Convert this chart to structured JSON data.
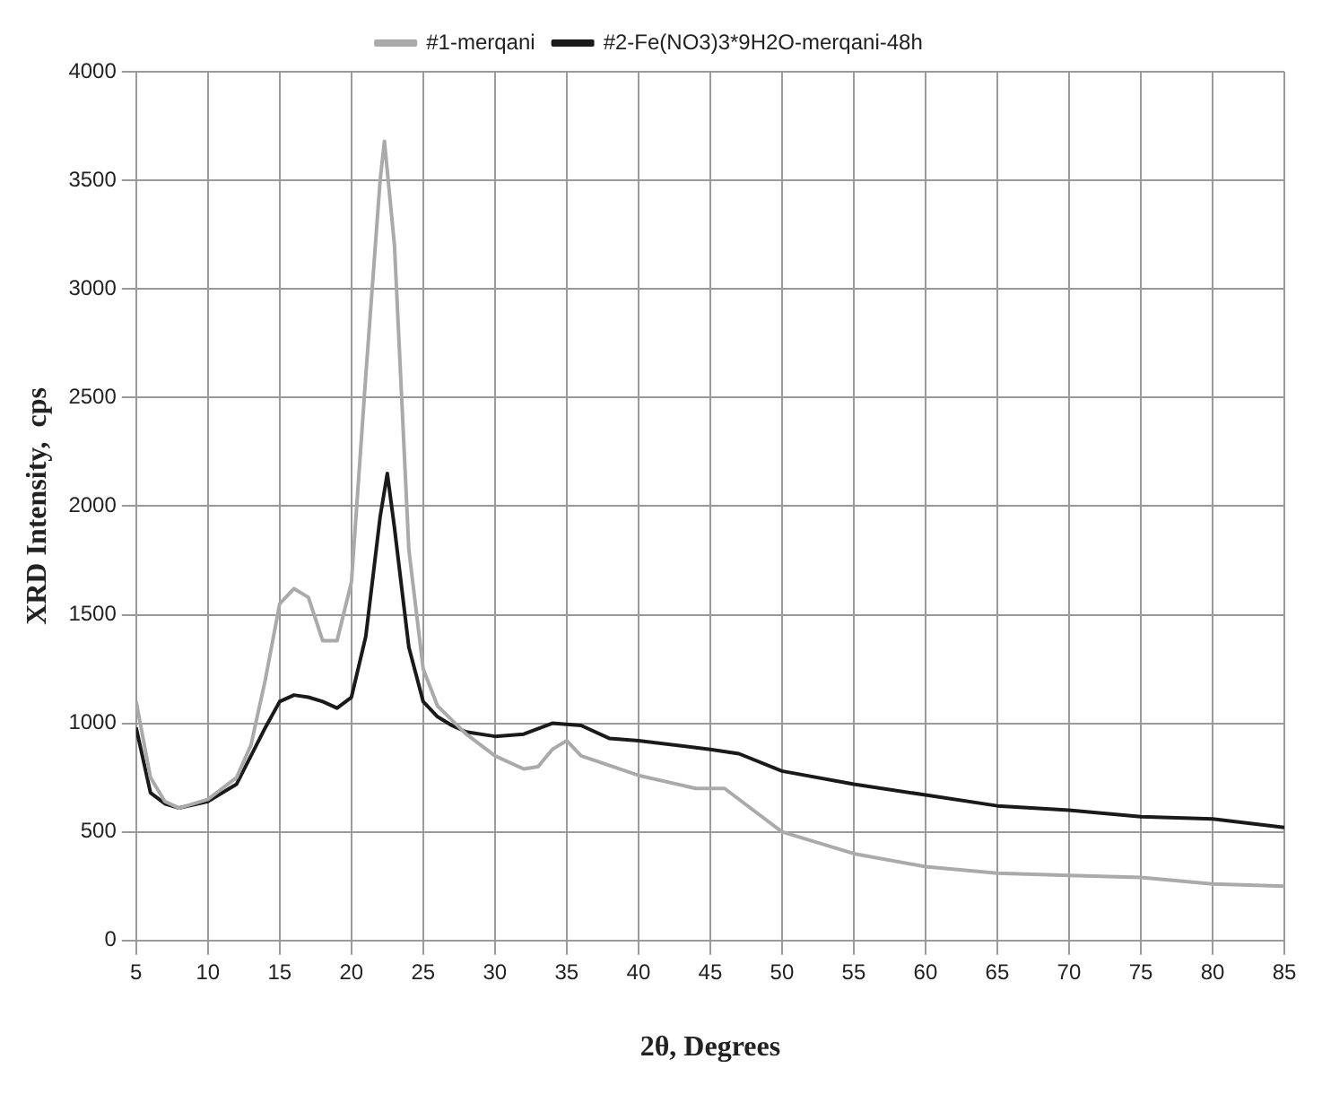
{
  "chart_data": {
    "type": "line",
    "xlabel": "2θ, Degrees",
    "ylabel": "XRD Intensity,  cps",
    "xlim": [
      5,
      85
    ],
    "xticks": [
      5,
      10,
      15,
      20,
      25,
      30,
      35,
      40,
      45,
      50,
      55,
      60,
      65,
      70,
      75,
      80,
      85
    ],
    "ylim": [
      0,
      4000
    ],
    "yticks": [
      0,
      500,
      1000,
      1500,
      2000,
      2500,
      3000,
      3500,
      4000
    ],
    "grid": true,
    "legend": "top",
    "marker": "none",
    "line_style": "solid",
    "series": [
      {
        "name": "#1-merqani",
        "color": "#aaaaaa",
        "x": [
          5,
          6,
          7,
          8,
          10,
          12,
          13,
          14,
          15,
          16,
          17,
          18,
          19,
          20,
          21,
          22,
          22.3,
          23,
          24,
          25,
          26,
          28,
          30,
          32,
          33,
          34,
          35,
          36,
          40,
          44,
          46,
          48,
          50,
          55,
          60,
          65,
          70,
          75,
          80,
          85
        ],
        "values": [
          1100,
          750,
          640,
          610,
          650,
          750,
          900,
          1200,
          1550,
          1620,
          1580,
          1380,
          1380,
          1650,
          2600,
          3500,
          3680,
          3200,
          1800,
          1250,
          1080,
          950,
          850,
          790,
          800,
          880,
          920,
          850,
          760,
          700,
          700,
          600,
          500,
          400,
          340,
          310,
          300,
          290,
          260,
          250
        ]
      },
      {
        "name": "#2-Fe(NO3)3*9H2O-merqani-48h",
        "color": "#1a1a1a",
        "x": [
          5,
          6,
          7,
          8,
          10,
          12,
          13,
          14,
          15,
          16,
          17,
          18,
          19,
          20,
          21,
          22,
          22.5,
          23,
          24,
          25,
          26,
          27,
          28,
          30,
          32,
          34,
          36,
          38,
          40,
          45,
          47,
          50,
          55,
          60,
          65,
          70,
          75,
          80,
          85
        ],
        "values": [
          980,
          680,
          630,
          610,
          640,
          720,
          850,
          980,
          1100,
          1130,
          1120,
          1100,
          1070,
          1120,
          1400,
          1950,
          2150,
          1900,
          1350,
          1100,
          1030,
          990,
          960,
          940,
          950,
          1000,
          990,
          930,
          920,
          880,
          860,
          780,
          720,
          670,
          620,
          600,
          570,
          560,
          520
        ]
      }
    ]
  }
}
